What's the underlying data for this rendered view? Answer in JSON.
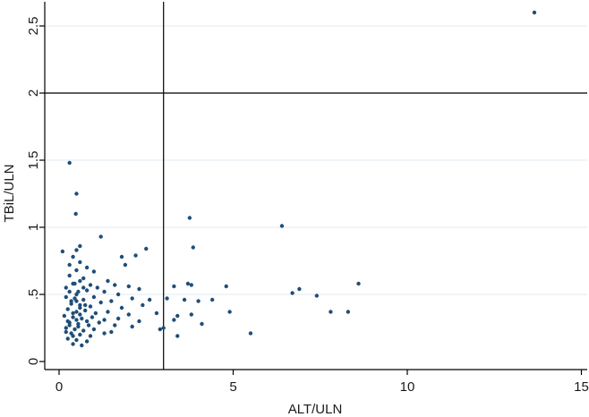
{
  "chart_data": {
    "type": "scatter",
    "title": "",
    "xlabel": "ALT/ULN",
    "ylabel": "TBiL/ULN",
    "xlim": [
      0,
      15
    ],
    "ylim": [
      0,
      2.6
    ],
    "xticks": [
      0,
      5,
      10,
      15
    ],
    "xtick_labels": [
      "0",
      "5",
      "10",
      "15"
    ],
    "yticks": [
      0,
      0.5,
      1,
      1.5,
      2,
      2.5
    ],
    "ytick_labels": [
      "0",
      ".5",
      "1",
      "1.5",
      "2",
      "2.5"
    ],
    "grid": "horizontal",
    "reference_lines": [
      {
        "orientation": "vertical",
        "value": 3
      },
      {
        "orientation": "horizontal",
        "value": 2
      }
    ],
    "colors": {
      "points": "#1f4e79",
      "grid": "#e6eef4",
      "axis": "#000000"
    },
    "series": [
      {
        "points": [
          [
            13.65,
            2.6
          ],
          [
            0.3,
            1.48
          ],
          [
            0.5,
            1.25
          ],
          [
            0.48,
            1.1
          ],
          [
            3.75,
            1.07
          ],
          [
            6.4,
            1.01
          ],
          [
            1.2,
            0.93
          ],
          [
            3.85,
            0.85
          ],
          [
            0.6,
            0.86
          ],
          [
            0.5,
            0.83
          ],
          [
            2.5,
            0.84
          ],
          [
            0.1,
            0.82
          ],
          [
            0.4,
            0.78
          ],
          [
            1.8,
            0.78
          ],
          [
            2.2,
            0.79
          ],
          [
            0.3,
            0.72
          ],
          [
            0.6,
            0.74
          ],
          [
            0.8,
            0.7
          ],
          [
            1.9,
            0.72
          ],
          [
            0.5,
            0.68
          ],
          [
            1.0,
            0.67
          ],
          [
            0.3,
            0.64
          ],
          [
            0.7,
            0.62
          ],
          [
            1.4,
            0.6
          ],
          [
            0.2,
            0.55
          ],
          [
            0.4,
            0.58
          ],
          [
            0.6,
            0.6
          ],
          [
            0.9,
            0.57
          ],
          [
            1.1,
            0.55
          ],
          [
            1.6,
            0.57
          ],
          [
            2.0,
            0.56
          ],
          [
            0.3,
            0.52
          ],
          [
            0.5,
            0.5
          ],
          [
            0.8,
            0.53
          ],
          [
            1.3,
            0.52
          ],
          [
            1.7,
            0.5
          ],
          [
            2.3,
            0.54
          ],
          [
            0.2,
            0.48
          ],
          [
            0.45,
            0.47
          ],
          [
            0.7,
            0.46
          ],
          [
            1.0,
            0.48
          ],
          [
            1.5,
            0.45
          ],
          [
            2.1,
            0.47
          ],
          [
            2.6,
            0.46
          ],
          [
            0.35,
            0.43
          ],
          [
            0.6,
            0.42
          ],
          [
            0.9,
            0.41
          ],
          [
            1.2,
            0.44
          ],
          [
            1.8,
            0.4
          ],
          [
            2.4,
            0.42
          ],
          [
            0.25,
            0.39
          ],
          [
            0.5,
            0.37
          ],
          [
            0.75,
            0.38
          ],
          [
            1.05,
            0.36
          ],
          [
            1.4,
            0.37
          ],
          [
            2.0,
            0.35
          ],
          [
            2.8,
            0.36
          ],
          [
            0.15,
            0.34
          ],
          [
            0.4,
            0.33
          ],
          [
            0.65,
            0.32
          ],
          [
            0.95,
            0.33
          ],
          [
            1.3,
            0.31
          ],
          [
            1.7,
            0.32
          ],
          [
            2.3,
            0.3
          ],
          [
            0.3,
            0.29
          ],
          [
            0.55,
            0.28
          ],
          [
            0.85,
            0.27
          ],
          [
            1.15,
            0.29
          ],
          [
            1.6,
            0.27
          ],
          [
            2.1,
            0.26
          ],
          [
            0.2,
            0.25
          ],
          [
            0.45,
            0.24
          ],
          [
            0.7,
            0.23
          ],
          [
            1.0,
            0.24
          ],
          [
            1.5,
            0.22
          ],
          [
            0.35,
            0.21
          ],
          [
            0.6,
            0.2
          ],
          [
            0.9,
            0.19
          ],
          [
            1.3,
            0.21
          ],
          [
            0.25,
            0.17
          ],
          [
            0.5,
            0.16
          ],
          [
            0.8,
            0.15
          ],
          [
            0.4,
            0.13
          ],
          [
            0.65,
            0.12
          ],
          [
            0.3,
            0.27
          ],
          [
            0.5,
            0.31
          ],
          [
            0.4,
            0.36
          ],
          [
            0.6,
            0.4
          ],
          [
            0.35,
            0.45
          ],
          [
            0.55,
            0.52
          ],
          [
            0.45,
            0.58
          ],
          [
            0.7,
            0.55
          ],
          [
            0.25,
            0.3
          ],
          [
            0.6,
            0.35
          ],
          [
            0.75,
            0.42
          ],
          [
            0.5,
            0.45
          ],
          [
            0.2,
            0.22
          ],
          [
            0.4,
            0.19
          ],
          [
            0.55,
            0.26
          ],
          [
            0.8,
            0.3
          ],
          [
            3.3,
            0.56
          ],
          [
            3.7,
            0.58
          ],
          [
            3.6,
            0.46
          ],
          [
            4.4,
            0.46
          ],
          [
            4.8,
            0.56
          ],
          [
            3.0,
            0.25
          ],
          [
            3.4,
            0.34
          ],
          [
            3.3,
            0.31
          ],
          [
            3.4,
            0.19
          ],
          [
            3.8,
            0.35
          ],
          [
            4.1,
            0.28
          ],
          [
            4.9,
            0.37
          ],
          [
            5.5,
            0.21
          ],
          [
            6.7,
            0.51
          ],
          [
            6.9,
            0.54
          ],
          [
            7.4,
            0.49
          ],
          [
            7.8,
            0.37
          ],
          [
            8.3,
            0.37
          ],
          [
            8.6,
            0.58
          ],
          [
            3.8,
            0.57
          ],
          [
            3.1,
            0.47
          ],
          [
            2.9,
            0.24
          ],
          [
            4.0,
            0.45
          ]
        ]
      }
    ]
  }
}
